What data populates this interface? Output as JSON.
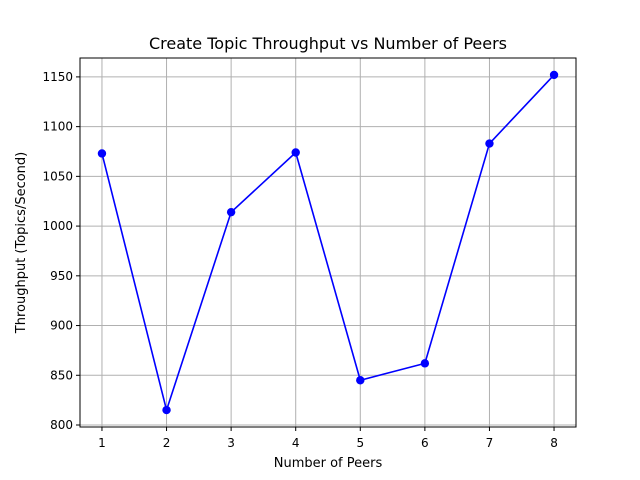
{
  "chart_data": {
    "type": "line",
    "title": "Create Topic Throughput vs Number of Peers",
    "xlabel": "Number of Peers",
    "ylabel": "Throughput (Topics/Second)",
    "x": [
      1,
      2,
      3,
      4,
      5,
      6,
      7,
      8
    ],
    "series": [
      {
        "values": [
          1073,
          815,
          1014,
          1074,
          845,
          862,
          1083,
          1152
        ],
        "color": "#0000ff",
        "marker": "circle"
      }
    ],
    "xlim": [
      0.66,
      8.34
    ],
    "ylim": [
      798,
      1169
    ],
    "xticks": [
      1,
      2,
      3,
      4,
      5,
      6,
      7,
      8
    ],
    "yticks": [
      800,
      850,
      900,
      950,
      1000,
      1050,
      1100,
      1150
    ],
    "grid": true
  }
}
